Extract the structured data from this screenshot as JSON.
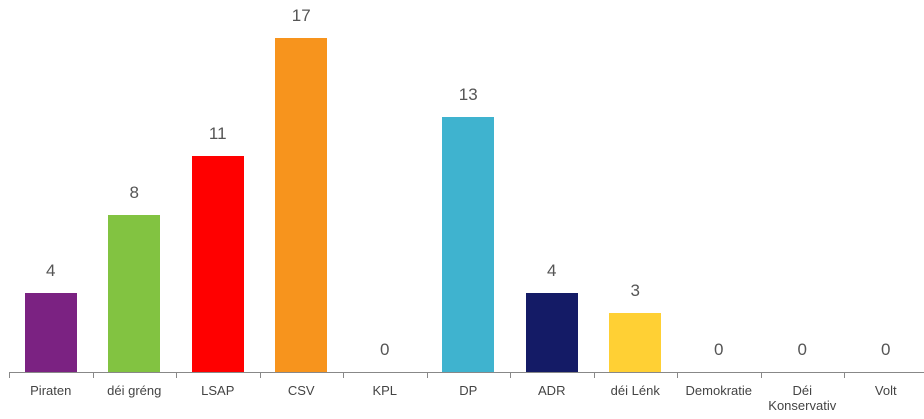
{
  "chart_data": {
    "type": "bar",
    "categories": [
      "Piraten",
      "déi gréng",
      "LSAP",
      "CSV",
      "KPL",
      "DP",
      "ADR",
      "déi Lénk",
      "Demokratie",
      "Déi Konservativ",
      "Volt"
    ],
    "values": [
      4,
      8,
      11,
      17,
      0,
      13,
      4,
      3,
      0,
      0,
      0
    ],
    "colors": [
      "#7b2282",
      "#82c341",
      "#ff0000",
      "#f7941d",
      "#999999",
      "#3fb3cf",
      "#141b66",
      "#ffd034",
      "#999999",
      "#999999",
      "#999999"
    ]
  }
}
